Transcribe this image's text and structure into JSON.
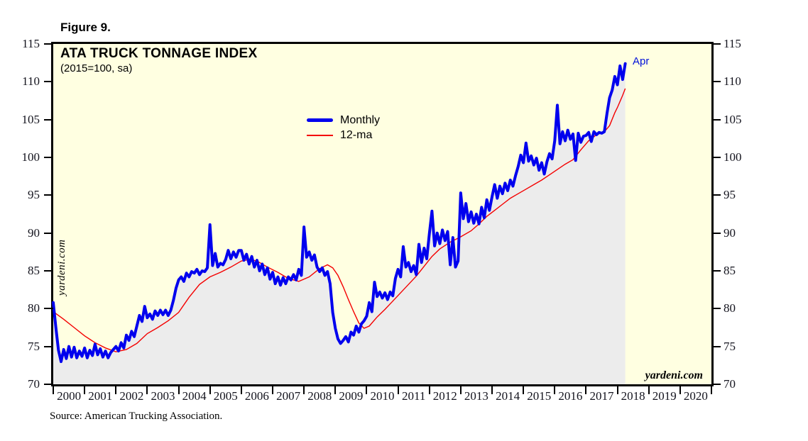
{
  "figure_label": "Figure 9.",
  "source_note": "Source: American Trucking Association.",
  "chart": {
    "title": "ATA TRUCK TONNAGE INDEX",
    "subtitle": "(2015=100, sa)",
    "watermark_left": "yardeni.com",
    "watermark_right": "yardeni.com"
  },
  "colors": {
    "plot_background": "#ffffe1",
    "area_fill": "#ececec",
    "monthly_line": "#0000ee",
    "ma_line": "#f40000",
    "frame": "#000000",
    "annotation_text": "#0010d8"
  },
  "chart_data": {
    "type": "line",
    "title": "ATA TRUCK TONNAGE INDEX",
    "subtitle": "(2015=100, sa)",
    "legend_position": "upper-center-left",
    "grid": false,
    "x_axis": {
      "start": "2000-01",
      "end_of_data": "2018-04",
      "years": [
        2000,
        2001,
        2002,
        2003,
        2004,
        2005,
        2006,
        2007,
        2008,
        2009,
        2010,
        2011,
        2012,
        2013,
        2014,
        2015,
        2016,
        2017,
        2018,
        2019,
        2020
      ]
    },
    "y_axis": {
      "min": 70,
      "max": 115,
      "tick_step": 5,
      "ticks": [
        115,
        110,
        105,
        100,
        95,
        90,
        85,
        80,
        75,
        70
      ]
    },
    "series": [
      {
        "name": "Monthly",
        "color": "#0000ee",
        "frequency": "monthly",
        "start": "2000-01",
        "values": [
          80.8,
          77.5,
          74.5,
          73.0,
          74.6,
          73.4,
          75.0,
          73.6,
          74.9,
          73.5,
          74.4,
          73.7,
          74.8,
          73.5,
          74.5,
          73.8,
          75.3,
          73.9,
          74.7,
          73.6,
          74.4,
          73.5,
          74.2,
          74.6,
          75.0,
          74.4,
          75.5,
          74.8,
          76.5,
          75.8,
          77.0,
          76.3,
          77.7,
          79.1,
          78.3,
          80.3,
          78.8,
          79.3,
          78.6,
          79.7,
          79.1,
          79.8,
          79.2,
          79.8,
          79.1,
          79.8,
          81.1,
          82.7,
          83.8,
          84.2,
          83.6,
          84.7,
          84.2,
          84.9,
          84.7,
          85.2,
          84.5,
          85.0,
          84.9,
          85.4,
          91.1,
          85.7,
          87.3,
          85.5,
          86.0,
          85.8,
          86.5,
          87.7,
          86.6,
          87.5,
          86.8,
          87.7,
          87.7,
          86.4,
          87.2,
          85.9,
          86.9,
          85.5,
          86.4,
          85.0,
          85.9,
          84.5,
          85.4,
          83.9,
          84.8,
          83.3,
          84.2,
          83.1,
          84.1,
          83.3,
          84.2,
          83.8,
          84.5,
          83.8,
          85.2,
          84.4,
          90.8,
          86.8,
          87.5,
          86.4,
          87.1,
          85.5,
          84.9,
          85.4,
          84.4,
          84.9,
          83.3,
          79.5,
          77.4,
          76.0,
          75.4,
          75.8,
          76.3,
          75.6,
          76.9,
          76.5,
          77.7,
          76.9,
          78.0,
          78.4,
          79.0,
          80.8,
          79.6,
          83.5,
          81.6,
          82.2,
          81.4,
          82.1,
          81.2,
          82.2,
          81.7,
          84.0,
          85.2,
          84.2,
          88.2,
          85.5,
          86.1,
          84.9,
          85.7,
          84.5,
          88.5,
          86.1,
          88.0,
          86.6,
          89.9,
          92.9,
          88.3,
          90.0,
          88.6,
          90.4,
          89.0,
          90.2,
          85.8,
          89.4,
          85.5,
          86.3,
          95.3,
          91.9,
          93.9,
          91.5,
          92.8,
          91.3,
          92.5,
          91.2,
          93.4,
          92.0,
          94.4,
          93.0,
          94.8,
          96.4,
          94.6,
          96.2,
          95.2,
          96.6,
          95.6,
          97.0,
          96.2,
          97.6,
          98.8,
          100.3,
          99.3,
          101.9,
          99.5,
          100.2,
          99.0,
          99.9,
          98.3,
          99.3,
          97.8,
          99.4,
          100.5,
          99.8,
          102.2,
          106.9,
          101.8,
          103.4,
          102.2,
          103.6,
          102.4,
          103.1,
          99.6,
          103.2,
          102.0,
          102.8,
          102.9,
          103.3,
          102.1,
          103.4,
          103.0,
          103.3,
          103.2,
          103.4,
          105.8,
          107.9,
          108.9,
          110.7,
          109.6,
          112.1,
          110.3,
          112.4
        ]
      },
      {
        "name": "12-ma",
        "color": "#f40000",
        "points": [
          [
            0,
            79.6
          ],
          [
            4,
            78.6
          ],
          [
            8,
            77.5
          ],
          [
            12,
            76.4
          ],
          [
            16,
            75.5
          ],
          [
            20,
            74.8
          ],
          [
            24,
            74.3
          ],
          [
            28,
            74.6
          ],
          [
            32,
            75.4
          ],
          [
            36,
            76.7
          ],
          [
            40,
            77.5
          ],
          [
            44,
            78.4
          ],
          [
            48,
            79.5
          ],
          [
            52,
            81.5
          ],
          [
            56,
            83.2
          ],
          [
            60,
            84.2
          ],
          [
            64,
            84.8
          ],
          [
            68,
            85.5
          ],
          [
            72,
            86.3
          ],
          [
            75,
            86.5
          ],
          [
            78,
            86.3
          ],
          [
            82,
            85.5
          ],
          [
            86,
            84.8
          ],
          [
            90,
            84.0
          ],
          [
            94,
            83.6
          ],
          [
            98,
            84.2
          ],
          [
            102,
            85.3
          ],
          [
            105,
            85.8
          ],
          [
            107,
            85.4
          ],
          [
            109,
            84.4
          ],
          [
            111,
            82.9
          ],
          [
            113,
            81.2
          ],
          [
            115,
            79.6
          ],
          [
            117,
            78.1
          ],
          [
            119,
            77.4
          ],
          [
            121,
            77.7
          ],
          [
            124,
            78.9
          ],
          [
            127,
            79.9
          ],
          [
            130,
            81.0
          ],
          [
            133,
            82.1
          ],
          [
            136,
            83.2
          ],
          [
            139,
            84.3
          ],
          [
            142,
            85.6
          ],
          [
            145,
            86.9
          ],
          [
            148,
            87.9
          ],
          [
            152,
            88.8
          ],
          [
            156,
            89.5
          ],
          [
            160,
            90.3
          ],
          [
            163,
            91.2
          ],
          [
            166,
            92.2
          ],
          [
            169,
            93.0
          ],
          [
            172,
            93.8
          ],
          [
            175,
            94.6
          ],
          [
            178,
            95.2
          ],
          [
            181,
            95.8
          ],
          [
            184,
            96.4
          ],
          [
            187,
            97.0
          ],
          [
            190,
            97.7
          ],
          [
            193,
            98.4
          ],
          [
            196,
            99.1
          ],
          [
            199,
            99.7
          ],
          [
            202,
            101.0
          ],
          [
            205,
            102.2
          ],
          [
            208,
            103.0
          ],
          [
            211,
            103.4
          ],
          [
            213,
            104.2
          ],
          [
            215,
            105.9
          ],
          [
            216,
            106.6
          ],
          [
            217,
            107.4
          ],
          [
            218,
            108.2
          ],
          [
            219,
            109.1
          ]
        ]
      }
    ],
    "annotation": {
      "text": "Apr",
      "series": "Monthly",
      "month": "2018-04",
      "value": 112.4
    }
  }
}
